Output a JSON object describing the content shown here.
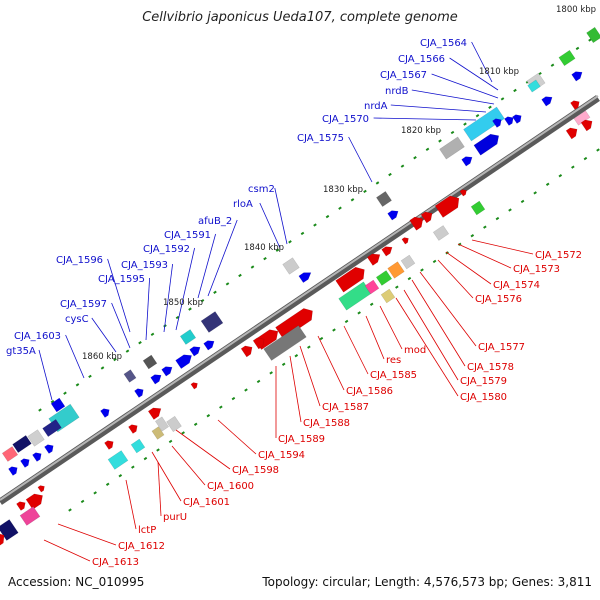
{
  "title": "Cellvibrio japonicus Ueda107, complete genome",
  "accession": "Accession: NC_010995",
  "topology": "Topology: circular; Length: 4,576,573 bp; Genes: 3,811",
  "kbp_labels": [
    "1800 kbp",
    "1810 kbp",
    "1820 kbp",
    "1830 kbp",
    "1840 kbp",
    "1850 kbp",
    "1860 kbp"
  ],
  "outer_labels": [
    "CJA_1564",
    "CJA_1566",
    "CJA_1567",
    "nrdB",
    "nrdA",
    "CJA_1570",
    "CJA_1575",
    "csm2",
    "rloA",
    "afuB_2",
    "CJA_1591",
    "CJA_1592",
    "CJA_1593",
    "CJA_1595",
    "CJA_1596",
    "CJA_1597",
    "cysC",
    "CJA_1603",
    "gt35A"
  ],
  "inner_labels": [
    "CJA_1572",
    "CJA_1573",
    "CJA_1574",
    "CJA_1576",
    "CJA_1577",
    "CJA_1578",
    "CJA_1579",
    "CJA_1580",
    "mod",
    "res",
    "CJA_1585",
    "CJA_1586",
    "CJA_1587",
    "CJA_1588",
    "CJA_1589",
    "CJA_1594",
    "CJA_1598",
    "CJA_1600",
    "CJA_1601",
    "purU",
    "lctP",
    "CJA_1612",
    "CJA_1613"
  ],
  "colors": {
    "forward_strand": "#0000e0",
    "reverse_strand": "#e00000",
    "backbone": "#888888",
    "tick": "#1a8a1a"
  }
}
